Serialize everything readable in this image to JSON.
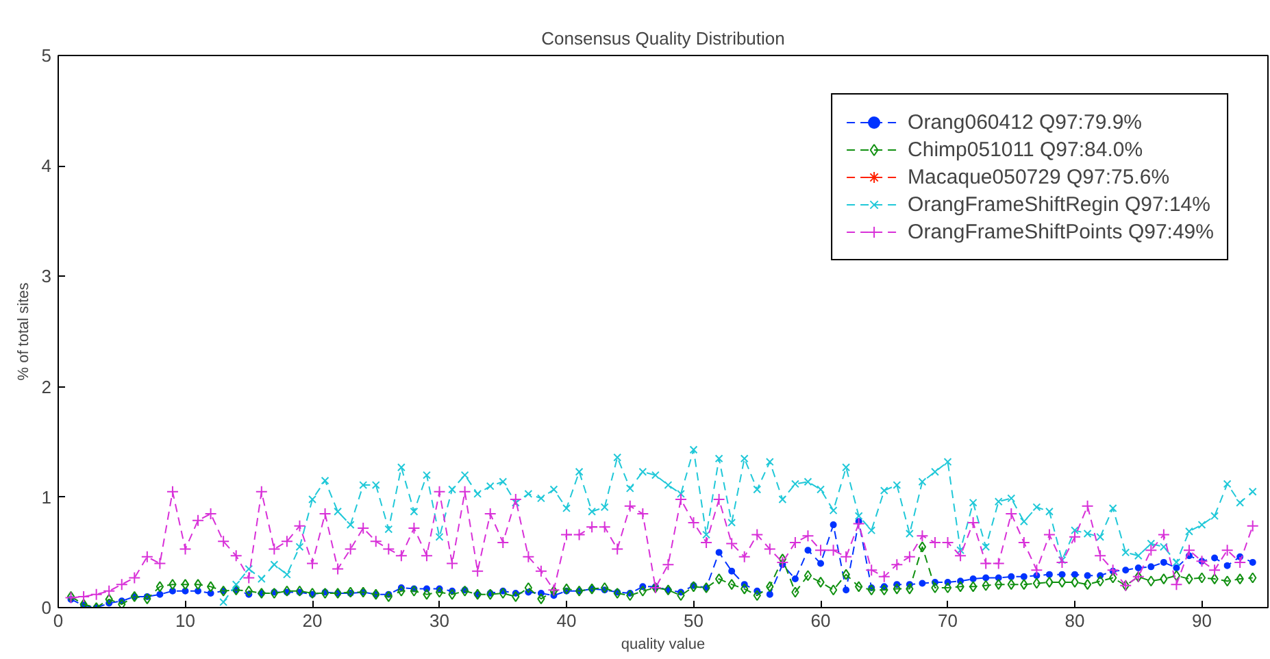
{
  "chart_data": {
    "type": "line",
    "title": "Consensus Quality Distribution",
    "xlabel": "quality value",
    "ylabel": "% of total sites",
    "x": [
      1,
      2,
      3,
      4,
      5,
      6,
      7,
      8,
      9,
      10,
      11,
      12,
      13,
      14,
      15,
      16,
      17,
      18,
      19,
      20,
      21,
      22,
      23,
      24,
      25,
      26,
      27,
      28,
      29,
      30,
      31,
      32,
      33,
      34,
      35,
      36,
      37,
      38,
      39,
      40,
      41,
      42,
      43,
      44,
      45,
      46,
      47,
      48,
      49,
      50,
      51,
      52,
      53,
      54,
      55,
      56,
      57,
      58,
      59,
      60,
      61,
      62,
      63,
      64,
      65,
      66,
      67,
      68,
      69,
      70,
      71,
      72,
      73,
      74,
      75,
      76,
      77,
      78,
      79,
      80,
      81,
      82,
      83,
      84,
      85,
      86,
      87,
      88,
      89,
      90,
      91,
      92,
      93,
      94
    ],
    "xlim": [
      0,
      95.2
    ],
    "ylim": [
      0,
      5
    ],
    "xticks": [
      0,
      10,
      20,
      30,
      40,
      50,
      60,
      70,
      80,
      90
    ],
    "yticks": [
      0,
      1,
      2,
      3,
      4,
      5
    ],
    "grid": false,
    "legend": "top right",
    "line_style": "dashed",
    "series": [
      {
        "name": "Orang060412 Q97:79.9%",
        "color": "#0033ff",
        "marker": "circle",
        "values": [
          0.075,
          0.02,
          0.0,
          0.04,
          0.06,
          0.1,
          0.1,
          0.12,
          0.15,
          0.15,
          0.15,
          0.13,
          0.15,
          0.16,
          0.12,
          0.13,
          0.14,
          0.14,
          0.14,
          0.12,
          0.14,
          0.13,
          0.13,
          0.14,
          0.12,
          0.12,
          0.18,
          0.17,
          0.17,
          0.17,
          0.15,
          0.16,
          0.12,
          0.13,
          0.15,
          0.13,
          0.14,
          0.13,
          0.11,
          0.15,
          0.15,
          0.17,
          0.16,
          0.14,
          0.13,
          0.19,
          0.19,
          0.16,
          0.14,
          0.2,
          0.18,
          0.5,
          0.33,
          0.21,
          0.15,
          0.12,
          0.39,
          0.26,
          0.52,
          0.4,
          0.75,
          0.16,
          0.78,
          0.18,
          0.19,
          0.21,
          0.21,
          0.22,
          0.23,
          0.23,
          0.24,
          0.26,
          0.27,
          0.27,
          0.28,
          0.28,
          0.29,
          0.3,
          0.3,
          0.3,
          0.29,
          0.29,
          0.33,
          0.34,
          0.36,
          0.37,
          0.41,
          0.36,
          0.47,
          0.42,
          0.45,
          0.38,
          0.46,
          0.41
        ]
      },
      {
        "name": "Chimp051011 Q97:84.0%",
        "color": "#109010",
        "marker": "diamond",
        "values": [
          0.1,
          0.03,
          0.0,
          0.075,
          0.03,
          0.1,
          0.08,
          0.19,
          0.21,
          0.21,
          0.21,
          0.19,
          0.15,
          0.16,
          0.15,
          0.13,
          0.13,
          0.15,
          0.15,
          0.13,
          0.13,
          0.13,
          0.14,
          0.14,
          0.12,
          0.1,
          0.15,
          0.15,
          0.12,
          0.14,
          0.12,
          0.15,
          0.12,
          0.12,
          0.13,
          0.1,
          0.18,
          0.08,
          0.15,
          0.17,
          0.15,
          0.17,
          0.18,
          0.13,
          0.11,
          0.15,
          0.18,
          0.16,
          0.11,
          0.19,
          0.18,
          0.26,
          0.21,
          0.17,
          0.11,
          0.19,
          0.44,
          0.14,
          0.29,
          0.23,
          0.16,
          0.3,
          0.19,
          0.16,
          0.16,
          0.17,
          0.17,
          0.55,
          0.18,
          0.18,
          0.19,
          0.19,
          0.2,
          0.21,
          0.21,
          0.21,
          0.22,
          0.23,
          0.23,
          0.23,
          0.21,
          0.24,
          0.27,
          0.2,
          0.28,
          0.24,
          0.26,
          0.29,
          0.26,
          0.27,
          0.26,
          0.24,
          0.26,
          0.27
        ]
      },
      {
        "name": "Macaque050729 Q97:75.6%",
        "color": "#ff2000",
        "marker": "star",
        "values": [
          null,
          null,
          null,
          null,
          null,
          null,
          null,
          null,
          null,
          null,
          null,
          null,
          null,
          null,
          null,
          null,
          null,
          null,
          null,
          null,
          null,
          null,
          null,
          null,
          null,
          null,
          null,
          null,
          null,
          null,
          null,
          null,
          null,
          null,
          null,
          null,
          null,
          null,
          null,
          null,
          null,
          null,
          null,
          null,
          null,
          null,
          null,
          null,
          null,
          null,
          null,
          null,
          null,
          null,
          null,
          null,
          null,
          null,
          null,
          null,
          null,
          null,
          null,
          null,
          null,
          null,
          null,
          null,
          null,
          null,
          null,
          null,
          null,
          null,
          null,
          null,
          null,
          null,
          null,
          null,
          null,
          null,
          null,
          null,
          null,
          null,
          null,
          null,
          null,
          null,
          null,
          null,
          null,
          null
        ]
      },
      {
        "name": "OrangFrameShiftRegin Q97:14%",
        "color": "#20c8d8",
        "marker": "x",
        "values": [
          null,
          null,
          null,
          null,
          null,
          null,
          null,
          null,
          null,
          null,
          null,
          null,
          0.05,
          0.21,
          0.35,
          0.26,
          0.39,
          0.3,
          0.55,
          0.98,
          1.15,
          0.87,
          0.75,
          1.11,
          1.11,
          0.71,
          1.27,
          0.87,
          1.2,
          0.64,
          1.07,
          1.2,
          1.03,
          1.1,
          1.14,
          0.95,
          1.03,
          0.99,
          1.07,
          0.9,
          1.23,
          0.87,
          0.91,
          1.36,
          1.08,
          1.23,
          1.2,
          1.11,
          1.03,
          1.43,
          0.66,
          1.35,
          0.77,
          1.35,
          1.07,
          1.32,
          0.98,
          1.12,
          1.14,
          1.07,
          0.88,
          1.27,
          0.83,
          0.7,
          1.06,
          1.11,
          0.67,
          1.14,
          1.23,
          1.32,
          0.52,
          0.95,
          0.55,
          0.96,
          0.99,
          0.78,
          0.91,
          0.87,
          0.43,
          0.7,
          0.67,
          0.64,
          0.9,
          0.5,
          0.47,
          0.58,
          0.55,
          0.41,
          0.69,
          0.75,
          0.83,
          1.12,
          0.95,
          1.05
        ]
      },
      {
        "name": "OrangFrameShiftPoints Q97:49%",
        "color": "#d830d8",
        "marker": "cross",
        "values": [
          0.09,
          0.1,
          0.12,
          0.15,
          0.21,
          0.27,
          0.46,
          0.4,
          1.05,
          0.53,
          0.79,
          0.85,
          0.6,
          0.47,
          0.27,
          1.05,
          0.53,
          0.6,
          0.74,
          0.4,
          0.85,
          0.35,
          0.53,
          0.72,
          0.6,
          0.53,
          0.47,
          0.72,
          0.47,
          1.05,
          0.4,
          1.05,
          0.33,
          0.85,
          0.59,
          0.98,
          0.46,
          0.33,
          0.16,
          0.66,
          0.66,
          0.73,
          0.73,
          0.53,
          0.92,
          0.85,
          0.18,
          0.39,
          0.98,
          0.77,
          0.59,
          0.98,
          0.58,
          0.46,
          0.66,
          0.53,
          0.41,
          0.59,
          0.65,
          0.52,
          0.52,
          0.46,
          0.76,
          0.34,
          0.28,
          0.39,
          0.46,
          0.65,
          0.59,
          0.59,
          0.47,
          0.77,
          0.4,
          0.4,
          0.85,
          0.59,
          0.34,
          0.66,
          0.41,
          0.64,
          0.92,
          0.47,
          0.34,
          0.2,
          0.28,
          0.52,
          0.66,
          0.21,
          0.52,
          0.42,
          0.34,
          0.52,
          0.41,
          0.74
        ]
      }
    ]
  }
}
